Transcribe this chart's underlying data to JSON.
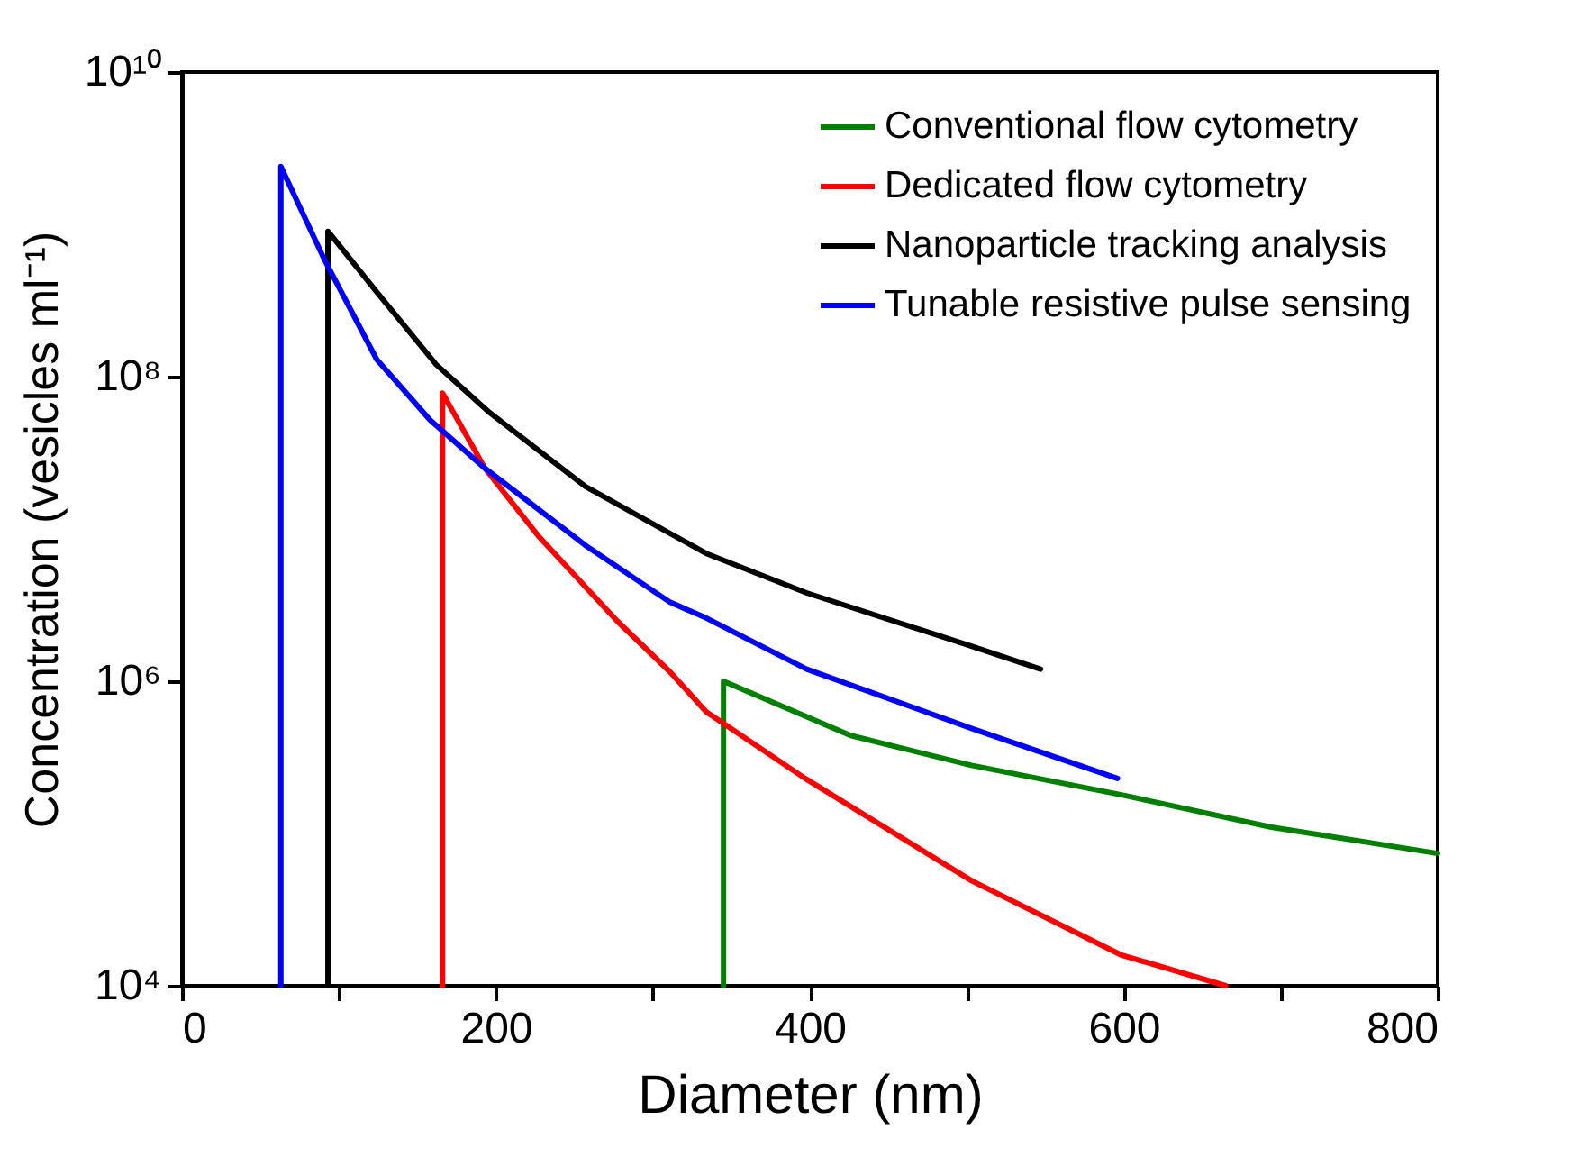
{
  "chart_data": {
    "type": "line",
    "xlabel": "Diameter (nm)",
    "ylabel": "Concentration (vesicles ml⁻¹)",
    "series": [
      {
        "name": "Conventional flow cytometry",
        "color": "#008000",
        "x": [
          345,
          345,
          426,
          503,
          598,
          694,
          800
        ],
        "values": [
          10000.0,
          1000000.0,
          440000.0,
          280000.0,
          180000.0,
          110000.0,
          74000.0
        ]
      },
      {
        "name": "Dedicated flow cytometry",
        "color": "#ff0000",
        "x": [
          166,
          166,
          193,
          227,
          277,
          311,
          334,
          397,
          503,
          598,
          665
        ],
        "values": [
          10000.0,
          78000000.0,
          25000000.0,
          9000000.0,
          2500000.0,
          1150000.0,
          630000.0,
          230000.0,
          49000.0,
          16000.0,
          10000.0
        ]
      },
      {
        "name": "Nanoparticle tracking analysis",
        "color": "#000000",
        "x": [
          93,
          93,
          124,
          162,
          196,
          257,
          334,
          398,
          503,
          547
        ],
        "values": [
          10000.0,
          900000000.0,
          360000000.0,
          120000000.0,
          58000000.0,
          19000000.0,
          6900000.0,
          3800000.0,
          1700000.0,
          1200000.0
        ]
      },
      {
        "name": "Tunable resistive pulse sensing",
        "color": "#0000ff",
        "x": [
          63,
          63,
          91,
          124,
          158,
          193,
          257,
          311,
          334,
          398,
          503,
          596
        ],
        "values": [
          10000.0,
          2400000000.0,
          580000000.0,
          130000000.0,
          52000000.0,
          25000000.0,
          7800000.0,
          3300000.0,
          2600000.0,
          1200000.0,
          490000.0,
          230000.0
        ]
      }
    ],
    "xlim": [
      0,
      800
    ],
    "xticks": [
      0,
      {
        "value": 100,
        "label": null
      },
      200,
      {
        "value": 300,
        "label": null
      },
      400,
      {
        "value": 500,
        "label": null
      },
      600,
      {
        "value": 700,
        "label": null
      },
      800
    ],
    "ylim": [
      10000.0,
      10000000000.0
    ],
    "yticks": [
      {
        "value": 10000.0,
        "label": "10⁴"
      },
      {
        "value": 1000000.0,
        "label": "10⁶"
      },
      {
        "value": 100000000.0,
        "label": "10⁸"
      },
      {
        "value": 10000000000.0,
        "label": "10¹⁰"
      }
    ],
    "log": "y",
    "grid": false,
    "legend": "top right",
    "line_style": "solid"
  }
}
